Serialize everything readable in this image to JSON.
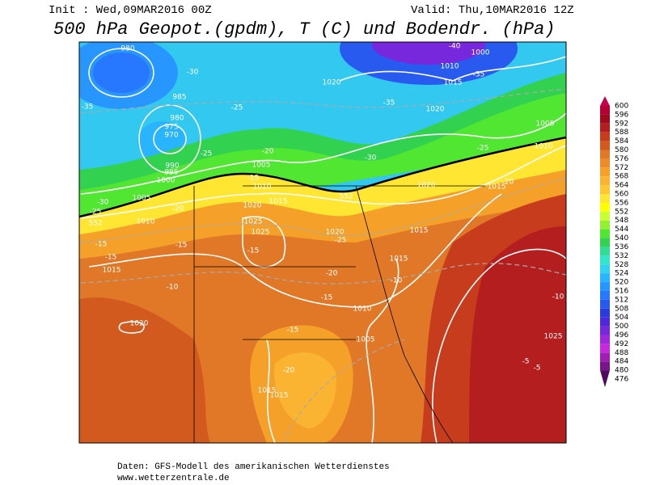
{
  "header": {
    "init": "Init : Wed,09MAR2016 00Z",
    "valid": "Valid: Thu,10MAR2016 12Z",
    "title": "500 hPa Geopot.(gpdm), T (C) und Bodendr. (hPa)"
  },
  "colorbar": {
    "levels": [
      600,
      596,
      592,
      588,
      584,
      580,
      576,
      572,
      568,
      564,
      560,
      556,
      552,
      548,
      544,
      540,
      536,
      532,
      528,
      524,
      520,
      516,
      512,
      508,
      504,
      500,
      496,
      492,
      488,
      484,
      480,
      476
    ],
    "colors": [
      "#c8004b",
      "#b40032",
      "#a00a1e",
      "#b41e1e",
      "#c83c1e",
      "#d25a1e",
      "#e07828",
      "#eb8c28",
      "#f5a028",
      "#fab432",
      "#ffc832",
      "#ffe632",
      "#ffff00",
      "#c8ff32",
      "#96f032",
      "#50e632",
      "#32d250",
      "#32dc96",
      "#32e6c8",
      "#32d2f0",
      "#28b4ff",
      "#2896ff",
      "#2878ff",
      "#285af0",
      "#283cdc",
      "#5028dc",
      "#7828dc",
      "#a028dc",
      "#c828dc",
      "#a01eb4",
      "#78148c",
      "#500a64"
    ]
  },
  "map": {
    "labels": [
      "980",
      "985",
      "980",
      "975",
      "970",
      "990",
      "995",
      "1000",
      "1005",
      "1010",
      "-30",
      "-25",
      "552",
      "-35",
      "-30",
      "-25",
      "-25",
      "-20",
      "1005",
      "-15",
      "1010",
      "1015",
      "1020",
      "1025",
      "1025",
      "-20",
      "-15",
      "-15",
      "-15",
      "1015",
      "-15",
      "-10",
      "1020",
      "1020",
      "-35",
      "1020",
      "-30",
      "552",
      "1020",
      "1020",
      "-25",
      "1015",
      "1015",
      "-20",
      "-10",
      "-15",
      "1010",
      "-15",
      "1005",
      "-20",
      "1015",
      "1015",
      "1010",
      "1015",
      "1000",
      "-35",
      "1005",
      "1010",
      "-25",
      "1015",
      "-20",
      "1025",
      "-5",
      "-5",
      "-10",
      "-40"
    ]
  },
  "footer": {
    "source": "Daten: GFS-Modell des amerikanischen Wetterdienstes",
    "url": "www.wetterzentrale.de"
  }
}
